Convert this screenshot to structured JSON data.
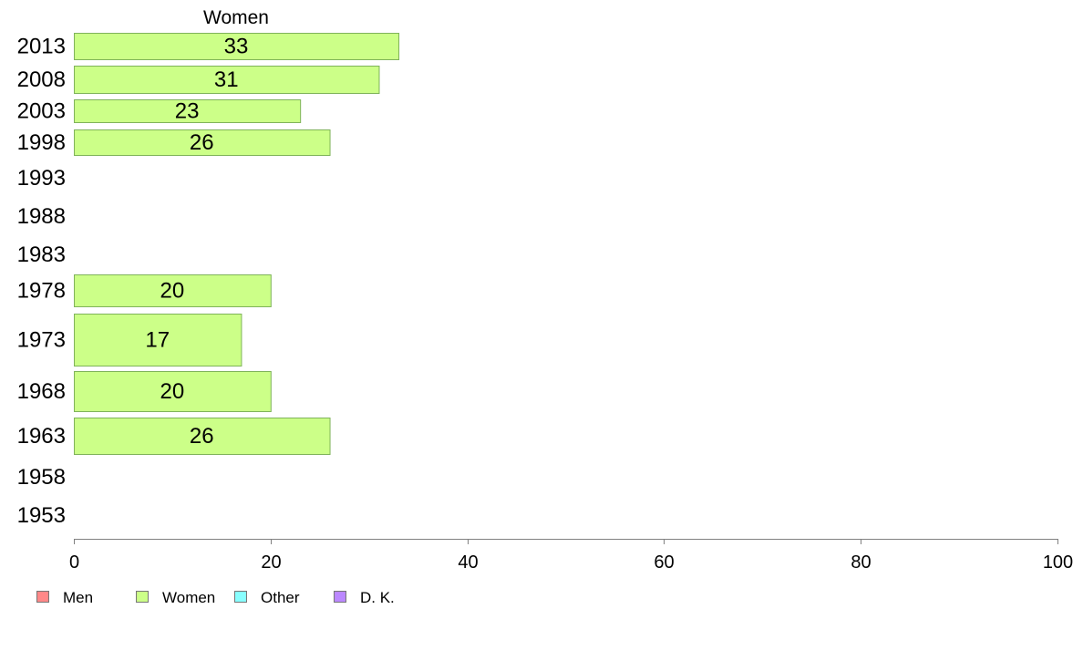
{
  "chart_data": {
    "type": "bar",
    "orientation": "horizontal",
    "categories": [
      "2013",
      "2008",
      "2003",
      "1998",
      "1993",
      "1988",
      "1983",
      "1978",
      "1973",
      "1968",
      "1963",
      "1958",
      "1953"
    ],
    "series": [
      {
        "name": "Women",
        "values": [
          33,
          31,
          23,
          26,
          null,
          null,
          null,
          20,
          17,
          20,
          26,
          null,
          null
        ],
        "color": "#ccff88"
      }
    ],
    "column_header": "Women",
    "xlim": [
      0,
      100
    ],
    "xticks": [
      0,
      20,
      40,
      60,
      80,
      100
    ],
    "legend": {
      "placement": "bottom-left",
      "entries": [
        {
          "label": "Men",
          "color": "#ff8888"
        },
        {
          "label": "Women",
          "color": "#ccff88"
        },
        {
          "label": "Other",
          "color": "#88ffff"
        },
        {
          "label": "D. K.",
          "color": "#bb88ff"
        }
      ]
    },
    "grid": false
  }
}
